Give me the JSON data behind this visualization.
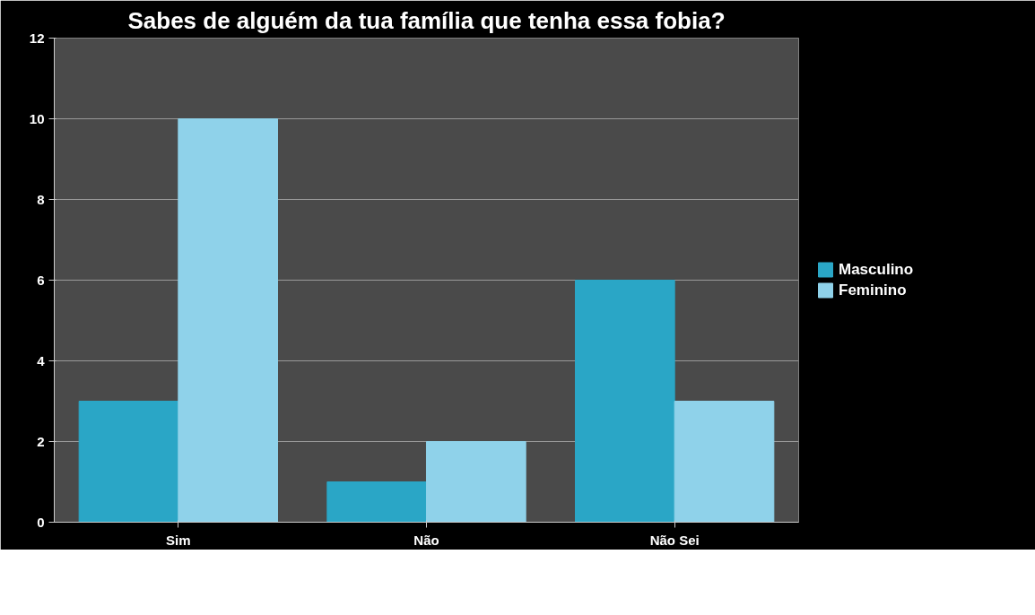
{
  "chart_data": {
    "type": "bar",
    "title": "Sabes de alguém da tua família que tenha essa fobia?",
    "categories": [
      "Sim",
      "Não",
      "Não Sei"
    ],
    "series": [
      {
        "name": "Masculino",
        "color": "#2aa6c6",
        "values": [
          3,
          1,
          6
        ]
      },
      {
        "name": "Feminino",
        "color": "#8fd2ea",
        "values": [
          10,
          2,
          3
        ]
      }
    ],
    "ylim": [
      0,
      12
    ],
    "yticks": [
      0,
      2,
      4,
      6,
      8,
      10,
      12
    ],
    "grid": "y",
    "legend": "right"
  }
}
